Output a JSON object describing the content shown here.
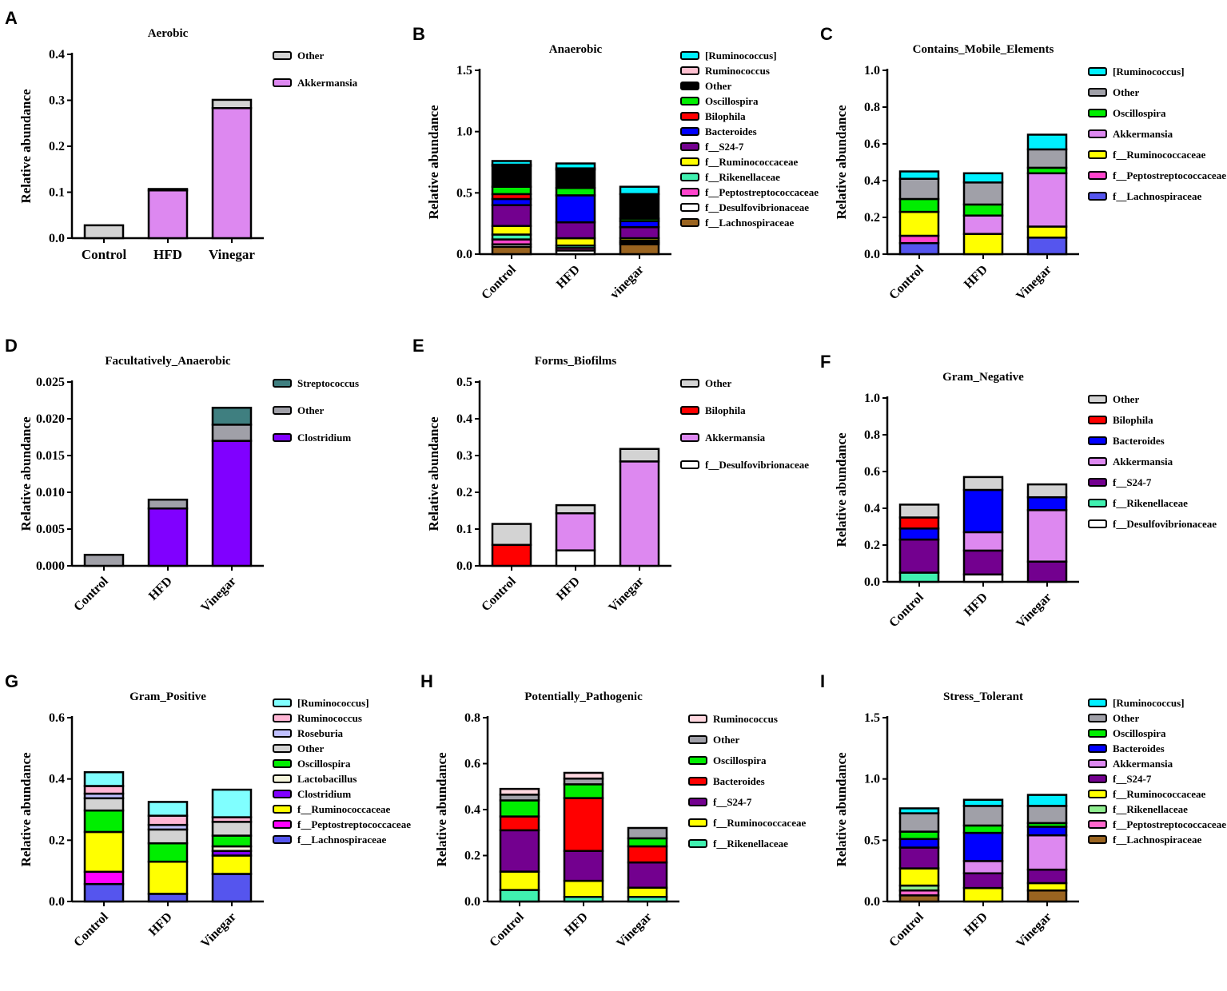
{
  "chart_data": [
    {
      "letter": "A",
      "type": "bar",
      "stacked": true,
      "title": "Aerobic",
      "ylabel": "Relative abundance",
      "ylim": [
        0,
        0.4
      ],
      "yticks": [
        "0.0",
        "0.1",
        "0.2",
        "0.3",
        "0.4"
      ],
      "rotate_xlabels": false,
      "categories": [
        "Control",
        "HFD",
        "Vinegar"
      ],
      "series": [
        {
          "name": "Other",
          "color": "#d3d3d3",
          "values": [
            0.028,
            0.003,
            0.018
          ]
        },
        {
          "name": "Akkermansia",
          "color": "#dd88f0",
          "values": [
            0,
            0.104,
            0.283
          ]
        }
      ]
    },
    {
      "letter": "B",
      "type": "bar",
      "stacked": true,
      "title": "Anaerobic",
      "ylabel": "Relative abundance",
      "ylim": [
        0,
        1.5
      ],
      "yticks": [
        "0.0",
        "0.5",
        "1.0",
        "1.5"
      ],
      "rotate_xlabels": true,
      "categories": [
        "Control",
        "HFD",
        "vinegar"
      ],
      "series": [
        {
          "name": "[Ruminococcus]",
          "color": "#00f0ff",
          "values": [
            0.03,
            0.04,
            0.06
          ]
        },
        {
          "name": "Ruminococcus",
          "color": "#ffc0d0",
          "values": [
            0.01,
            0.01,
            0
          ]
        },
        {
          "name": "Other",
          "color": "#000000",
          "values": [
            0.17,
            0.15,
            0.2
          ]
        },
        {
          "name": "Oscillospira",
          "color": "#00ee00",
          "values": [
            0.06,
            0.06,
            0.02
          ]
        },
        {
          "name": "Bilophila",
          "color": "#ff0000",
          "values": [
            0.04,
            0,
            0
          ]
        },
        {
          "name": "Bacteroides",
          "color": "#0000ff",
          "values": [
            0.05,
            0.22,
            0.05
          ]
        },
        {
          "name": "f__S24-7",
          "color": "#73008f",
          "values": [
            0.17,
            0.13,
            0.09
          ]
        },
        {
          "name": "f__Ruminococcaceae",
          "color": "#ffff00",
          "values": [
            0.07,
            0.06,
            0.02
          ]
        },
        {
          "name": "f__Rikenellaceae",
          "color": "#40f0b0",
          "values": [
            0.04,
            0.02,
            0.01
          ]
        },
        {
          "name": "f__Peptostreptococcaceae",
          "color": "#ff44cc",
          "values": [
            0.04,
            0.02,
            0.01
          ]
        },
        {
          "name": "f__Desulfovibrionaceae",
          "color": "#ffffff",
          "values": [
            0.02,
            0.03,
            0.01
          ]
        },
        {
          "name": "f__Lachnospiraceae",
          "color": "#9a6420",
          "values": [
            0.06,
            0,
            0.08
          ]
        }
      ]
    },
    {
      "letter": "C",
      "type": "bar",
      "stacked": true,
      "title": "Contains_Mobile_Elements",
      "ylabel": "Relative abundance",
      "ylim": [
        0,
        1.0
      ],
      "yticks": [
        "0.0",
        "0.2",
        "0.4",
        "0.6",
        "0.8",
        "1.0"
      ],
      "rotate_xlabels": true,
      "categories": [
        "Control",
        "HFD",
        "Vinegar"
      ],
      "series": [
        {
          "name": "[Ruminococcus]",
          "color": "#00f0ff",
          "values": [
            0.04,
            0.05,
            0.08
          ]
        },
        {
          "name": "Other",
          "color": "#a0a0a8",
          "values": [
            0.11,
            0.12,
            0.1
          ]
        },
        {
          "name": "Oscillospira",
          "color": "#00ee00",
          "values": [
            0.07,
            0.06,
            0.03
          ]
        },
        {
          "name": "Akkermansia",
          "color": "#dd88f0",
          "values": [
            0,
            0.1,
            0.29
          ]
        },
        {
          "name": "f__Ruminococcaceae",
          "color": "#ffff00",
          "values": [
            0.13,
            0.11,
            0.06
          ]
        },
        {
          "name": "f__Peptostreptococcaceae",
          "color": "#ff44cc",
          "values": [
            0.04,
            0,
            0
          ]
        },
        {
          "name": "f__Lachnospiraceae",
          "color": "#5555ee",
          "values": [
            0.06,
            0,
            0.09
          ]
        }
      ]
    },
    {
      "letter": "D",
      "type": "bar",
      "stacked": true,
      "title": "Facultatively_Anaerobic",
      "ylabel": "Relative abundance",
      "ylim": [
        0,
        0.025
      ],
      "yticks": [
        "0.000",
        "0.005",
        "0.010",
        "0.015",
        "0.020",
        "0.025"
      ],
      "rotate_xlabels": true,
      "categories": [
        "Control",
        "HFD",
        "Vinegar"
      ],
      "series": [
        {
          "name": "Streptococcus",
          "color": "#3f7f80",
          "values": [
            0,
            0,
            0.0023
          ]
        },
        {
          "name": "Other",
          "color": "#a0a0a8",
          "values": [
            0.0015,
            0.0012,
            0.0022
          ]
        },
        {
          "name": "Clostridium",
          "color": "#8000ff",
          "values": [
            0,
            0.0078,
            0.017
          ]
        }
      ]
    },
    {
      "letter": "E",
      "type": "bar",
      "stacked": true,
      "title": "Forms_Biofilms",
      "ylabel": "Relative abundance",
      "ylim": [
        0,
        0.5
      ],
      "yticks": [
        "0.0",
        "0.1",
        "0.2",
        "0.3",
        "0.4",
        "0.5"
      ],
      "rotate_xlabels": true,
      "categories": [
        "Control",
        "HFD",
        "Vinegar"
      ],
      "series": [
        {
          "name": "Other",
          "color": "#d3d3d3",
          "values": [
            0.057,
            0.022,
            0.034
          ]
        },
        {
          "name": "Bilophila",
          "color": "#ff0000",
          "values": [
            0.057,
            0,
            0
          ]
        },
        {
          "name": "Akkermansia",
          "color": "#dd88f0",
          "values": [
            0,
            0.101,
            0.284
          ]
        },
        {
          "name": "f__Desulfovibrionaceae",
          "color": "#ffffff",
          "values": [
            0,
            0.042,
            0
          ]
        }
      ]
    },
    {
      "letter": "F",
      "type": "bar",
      "stacked": true,
      "title": "Gram_Negative",
      "ylabel": "Relative abundance",
      "ylim": [
        0,
        1.0
      ],
      "yticks": [
        "0.0",
        "0.2",
        "0.4",
        "0.6",
        "0.8",
        "1.0"
      ],
      "rotate_xlabels": true,
      "categories": [
        "Control",
        "HFD",
        "Vinegar"
      ],
      "series": [
        {
          "name": "Other",
          "color": "#d3d3d3",
          "values": [
            0.07,
            0.07,
            0.07
          ]
        },
        {
          "name": "Bilophila",
          "color": "#ff0000",
          "values": [
            0.06,
            0,
            0
          ]
        },
        {
          "name": "Bacteroides",
          "color": "#0000ff",
          "values": [
            0.06,
            0.23,
            0.07
          ]
        },
        {
          "name": "Akkermansia",
          "color": "#dd88f0",
          "values": [
            0,
            0.1,
            0.28
          ]
        },
        {
          "name": "f__S24-7",
          "color": "#73008f",
          "values": [
            0.18,
            0.13,
            0.11
          ]
        },
        {
          "name": "f__Rikenellaceae",
          "color": "#40f0b0",
          "values": [
            0.05,
            0,
            0
          ]
        },
        {
          "name": "f__Desulfovibrionaceae",
          "color": "#ffffff",
          "values": [
            0,
            0.04,
            0
          ]
        }
      ]
    },
    {
      "letter": "G",
      "type": "bar",
      "stacked": true,
      "title": "Gram_Positive",
      "ylabel": "Relative abundance",
      "ylim": [
        0,
        0.6
      ],
      "yticks": [
        "0.0",
        "0.2",
        "0.4",
        "0.6"
      ],
      "rotate_xlabels": true,
      "categories": [
        "Control",
        "HFD",
        "Vinegar"
      ],
      "series": [
        {
          "name": "[Ruminococcus]",
          "color": "#80ffff",
          "values": [
            0.045,
            0.045,
            0.09
          ]
        },
        {
          "name": "Ruminococcus",
          "color": "#ffb6d5",
          "values": [
            0.025,
            0.03,
            0.015
          ]
        },
        {
          "name": "Roseburia",
          "color": "#c0c0ff",
          "values": [
            0.015,
            0.015,
            0
          ]
        },
        {
          "name": "Other",
          "color": "#d3d3d3",
          "values": [
            0.04,
            0.045,
            0.045
          ]
        },
        {
          "name": "Oscillospira",
          "color": "#00ee00",
          "values": [
            0.07,
            0.06,
            0.035
          ]
        },
        {
          "name": "Lactobacillus",
          "color": "#f5f5dc",
          "values": [
            0,
            0,
            0.015
          ]
        },
        {
          "name": "Clostridium",
          "color": "#8000ff",
          "values": [
            0,
            0,
            0.015
          ]
        },
        {
          "name": "f__Ruminococcaceae",
          "color": "#ffff00",
          "values": [
            0.13,
            0.105,
            0.06
          ]
        },
        {
          "name": "f__Peptostreptococcaceae",
          "color": "#ff00ff",
          "values": [
            0.04,
            0,
            0
          ]
        },
        {
          "name": "f__Lachnospiraceae",
          "color": "#5555ee",
          "values": [
            0.057,
            0.025,
            0.09
          ]
        }
      ]
    },
    {
      "letter": "H",
      "type": "bar",
      "stacked": true,
      "title": "Potentially_Pathogenic",
      "ylabel": "Relative abundance",
      "ylim": [
        0,
        0.8
      ],
      "yticks": [
        "0.0",
        "0.2",
        "0.4",
        "0.6",
        "0.8"
      ],
      "rotate_xlabels": true,
      "categories": [
        "Control",
        "HFD",
        "Vinegar"
      ],
      "series": [
        {
          "name": "Ruminococcus",
          "color": "#ffd8e0",
          "values": [
            0.025,
            0.025,
            0
          ]
        },
        {
          "name": "Other",
          "color": "#a0a0a8",
          "values": [
            0.025,
            0.025,
            0.045
          ]
        },
        {
          "name": "Oscillospira",
          "color": "#00ee00",
          "values": [
            0.07,
            0.06,
            0.035
          ]
        },
        {
          "name": "Bacteroides",
          "color": "#ff0000",
          "values": [
            0.06,
            0.23,
            0.07
          ]
        },
        {
          "name": "f__S24-7",
          "color": "#73008f",
          "values": [
            0.18,
            0.13,
            0.11
          ]
        },
        {
          "name": "f__Ruminococcaceae",
          "color": "#ffff00",
          "values": [
            0.08,
            0.07,
            0.04
          ]
        },
        {
          "name": "f__Rikenellaceae",
          "color": "#40f0b0",
          "values": [
            0.05,
            0.02,
            0.02
          ]
        }
      ]
    },
    {
      "letter": "I",
      "type": "bar",
      "stacked": true,
      "title": "Stress_Tolerant",
      "ylabel": "Relative abundance",
      "ylim": [
        0,
        1.5
      ],
      "yticks": [
        "0.0",
        "0.5",
        "1.0",
        "1.5"
      ],
      "rotate_xlabels": true,
      "categories": [
        "Control",
        "HFD",
        "Vinegar"
      ],
      "series": [
        {
          "name": "[Ruminococcus]",
          "color": "#00f0ff",
          "values": [
            0.04,
            0.05,
            0.09
          ]
        },
        {
          "name": "Other",
          "color": "#a0a0a8",
          "values": [
            0.15,
            0.16,
            0.14
          ]
        },
        {
          "name": "Oscillospira",
          "color": "#00ee00",
          "values": [
            0.06,
            0.06,
            0.03
          ]
        },
        {
          "name": "Bacteroides",
          "color": "#0000ff",
          "values": [
            0.07,
            0.23,
            0.07
          ]
        },
        {
          "name": "Akkermansia",
          "color": "#dd88f0",
          "values": [
            0,
            0.1,
            0.28
          ]
        },
        {
          "name": "f__S24-7",
          "color": "#73008f",
          "values": [
            0.17,
            0.12,
            0.11
          ]
        },
        {
          "name": "f__Ruminococcaceae",
          "color": "#ffff00",
          "values": [
            0.14,
            0.11,
            0.06
          ]
        },
        {
          "name": "f__Rikenellaceae",
          "color": "#90ee90",
          "values": [
            0.04,
            0,
            0
          ]
        },
        {
          "name": "f__Peptostreptococcaceae",
          "color": "#ff66cc",
          "values": [
            0.04,
            0,
            0
          ]
        },
        {
          "name": "f__Lachnospiraceae",
          "color": "#9a6420",
          "values": [
            0.05,
            0,
            0.09
          ]
        }
      ]
    }
  ]
}
